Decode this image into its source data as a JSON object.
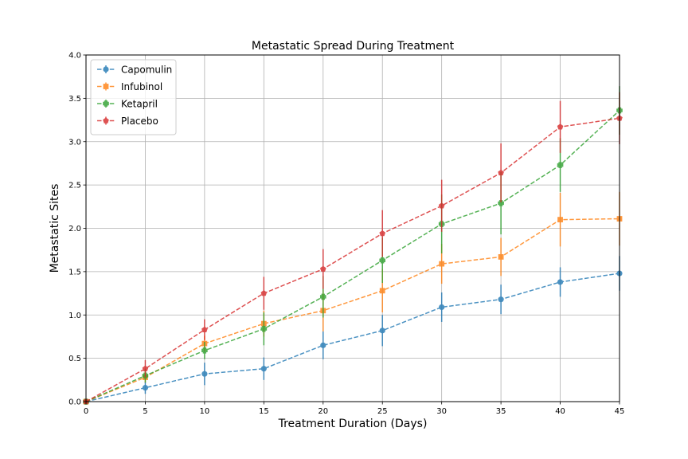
{
  "chart_data": {
    "type": "line",
    "title": "Metastatic Spread During Treatment",
    "xlabel": "Treatment Duration (Days)",
    "ylabel": "Metastatic Sites",
    "xlim": [
      0,
      45
    ],
    "ylim": [
      0.0,
      4.0
    ],
    "grid": true,
    "legend_position": "top-left",
    "x": [
      0,
      5,
      10,
      15,
      20,
      25,
      30,
      35,
      40,
      45
    ],
    "x_ticks": [
      "0",
      "5",
      "10",
      "15",
      "20",
      "25",
      "30",
      "35",
      "40",
      "45"
    ],
    "y_ticks": [
      "0.0",
      "0.5",
      "1.0",
      "1.5",
      "2.0",
      "2.5",
      "3.0",
      "3.5",
      "4.0"
    ],
    "series": [
      {
        "name": "Capomulin",
        "color": "#1f77b4",
        "marker": "circle",
        "values": [
          0.0,
          0.16,
          0.32,
          0.38,
          0.65,
          0.82,
          1.09,
          1.18,
          1.38,
          1.48
        ],
        "errors": [
          0.0,
          0.07,
          0.13,
          0.13,
          0.16,
          0.18,
          0.17,
          0.17,
          0.17,
          0.2
        ]
      },
      {
        "name": "Infubinol",
        "color": "#ff7f0e",
        "marker": "square",
        "values": [
          0.0,
          0.28,
          0.67,
          0.9,
          1.05,
          1.28,
          1.59,
          1.67,
          2.1,
          2.11
        ],
        "errors": [
          0.0,
          0.06,
          0.09,
          0.15,
          0.24,
          0.25,
          0.23,
          0.22,
          0.31,
          0.31
        ]
      },
      {
        "name": "Ketapril",
        "color": "#2ca02c",
        "marker": "plus",
        "values": [
          0.0,
          0.3,
          0.59,
          0.84,
          1.21,
          1.63,
          2.05,
          2.29,
          2.73,
          3.36
        ],
        "errors": [
          0.0,
          0.08,
          0.1,
          0.19,
          0.24,
          0.26,
          0.34,
          0.36,
          0.31,
          0.28
        ]
      },
      {
        "name": "Placebo",
        "color": "#d62728",
        "marker": "pentagon",
        "values": [
          0.0,
          0.38,
          0.83,
          1.25,
          1.53,
          1.94,
          2.26,
          2.64,
          3.17,
          3.27
        ],
        "errors": [
          0.0,
          0.1,
          0.12,
          0.19,
          0.23,
          0.27,
          0.3,
          0.34,
          0.3,
          0.3
        ]
      }
    ]
  }
}
